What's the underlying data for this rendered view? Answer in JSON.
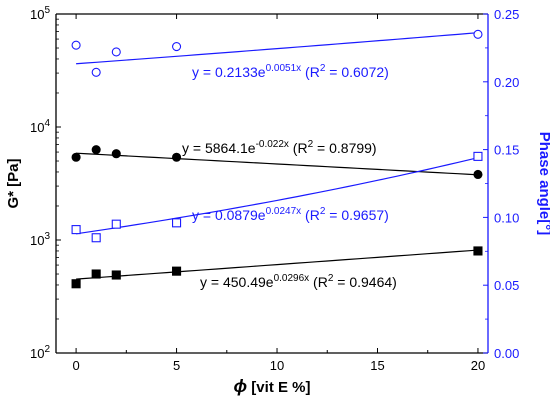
{
  "chart_data": {
    "type": "scatter",
    "colors": {
      "left": "#000000",
      "right": "#1a1aff"
    },
    "x_axis": {
      "label_symbol": "ϕ",
      "label_rest": " [vit E %]",
      "range": [
        -1,
        20.5
      ],
      "ticks": [
        0,
        5,
        10,
        15,
        20
      ],
      "tick_labels": [
        "0",
        "5",
        "10",
        "15",
        "20"
      ]
    },
    "y_left": {
      "label": "G* [Pa]",
      "scale": "log",
      "range": [
        100,
        100000
      ],
      "ticks": [
        100,
        1000,
        10000,
        100000
      ],
      "tick_labels": [
        {
          "base": "10",
          "exp": "2"
        },
        {
          "base": "10",
          "exp": "3"
        },
        {
          "base": "10",
          "exp": "4"
        },
        {
          "base": "10",
          "exp": "5"
        }
      ]
    },
    "y_right": {
      "label": "Phase angle[°]",
      "scale": "linear",
      "range": [
        0,
        0.25
      ],
      "ticks": [
        0,
        0.05,
        0.1,
        0.15,
        0.2,
        0.25
      ],
      "tick_labels": [
        "0.00",
        "0.05",
        "0.10",
        "0.15",
        "0.20",
        "0.25"
      ]
    },
    "series": [
      {
        "axis": "left",
        "marker": "circle",
        "filled": true,
        "x": [
          0,
          1,
          2,
          5,
          20
        ],
        "y": [
          5400,
          6300,
          5800,
          5400,
          3800
        ],
        "fit": {
          "model": "exp",
          "a": 5864.1,
          "b": -0.022
        },
        "equation": {
          "pre": "y = 5864.1e",
          "exp": "-0.022x",
          "post": " (R",
          "r2_sup": "2",
          "r2_post": " = 0.8799)"
        }
      },
      {
        "axis": "left",
        "marker": "square",
        "filled": true,
        "x": [
          0,
          1,
          2,
          5,
          20
        ],
        "y": [
          410,
          500,
          490,
          530,
          800
        ],
        "fit": {
          "model": "exp",
          "a": 450.49,
          "b": 0.0296
        },
        "equation": {
          "pre": "y = 450.49e",
          "exp": "0.0296x",
          "post": " (R",
          "r2_sup": "2",
          "r2_post": " = 0.9464)"
        }
      },
      {
        "axis": "right",
        "marker": "circle",
        "filled": false,
        "x": [
          0,
          1,
          2,
          5,
          20
        ],
        "y": [
          0.227,
          0.207,
          0.222,
          0.226,
          0.235
        ],
        "fit": {
          "model": "exp",
          "a": 0.2133,
          "b": 0.0051
        },
        "equation": {
          "pre": "y = 0.2133e",
          "exp": "0.0051x",
          "post": " (R",
          "r2_sup": "2",
          "r2_post": " = 0.6072)"
        }
      },
      {
        "axis": "right",
        "marker": "square",
        "filled": false,
        "x": [
          0,
          1,
          2,
          5,
          20
        ],
        "y": [
          0.091,
          0.085,
          0.095,
          0.096,
          0.145
        ],
        "fit": {
          "model": "exp",
          "a": 0.0879,
          "b": 0.0247
        },
        "equation": {
          "pre": "y = 0.0879e",
          "exp": "0.0247x",
          "post": " (R",
          "r2_sup": "2",
          "r2_post": " = 0.9657)"
        }
      }
    ]
  }
}
